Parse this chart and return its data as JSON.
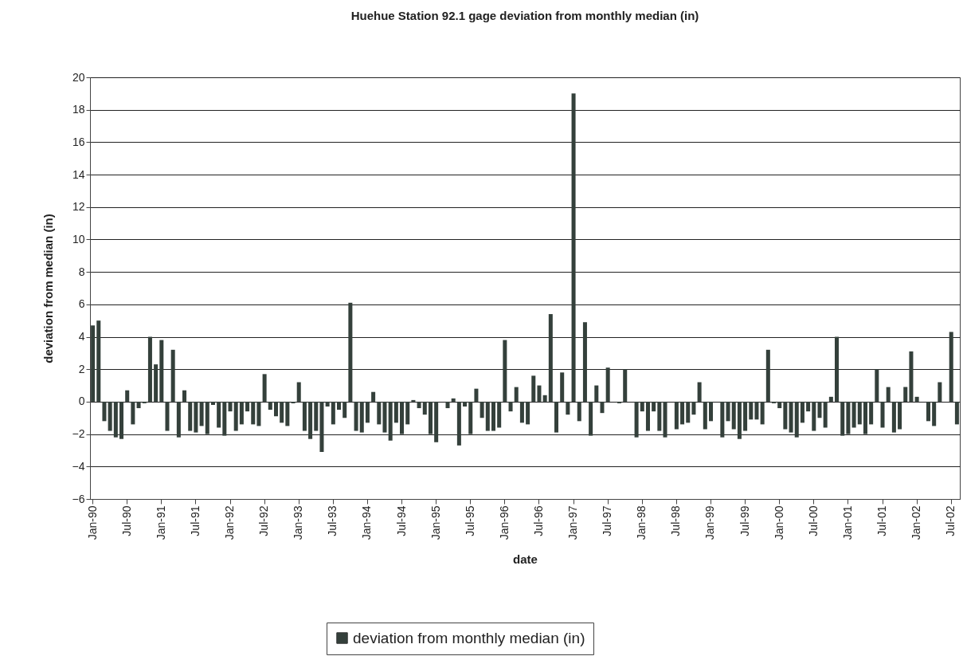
{
  "chart_data": {
    "type": "bar",
    "title": "Huehue Station 92.1 gage deviation from monthly median (in)",
    "xlabel": "date",
    "ylabel": "deviation from median (in)",
    "categories": [
      "Jan-90",
      null,
      null,
      null,
      null,
      null,
      "Jul-90",
      null,
      null,
      null,
      null,
      null,
      "Jan-91",
      null,
      null,
      null,
      null,
      null,
      "Jul-91",
      null,
      null,
      null,
      null,
      null,
      "Jan-92",
      null,
      null,
      null,
      null,
      null,
      "Jul-92",
      null,
      null,
      null,
      null,
      null,
      "Jan-93",
      null,
      null,
      null,
      null,
      null,
      "Jul-93",
      null,
      null,
      null,
      null,
      null,
      "Jan-94",
      null,
      null,
      null,
      null,
      null,
      "Jul-94",
      null,
      null,
      null,
      null,
      null,
      "Jan-95",
      null,
      null,
      null,
      null,
      null,
      "Jul-95",
      null,
      null,
      null,
      null,
      null,
      "Jan-96",
      null,
      null,
      null,
      null,
      null,
      "Jul-96",
      null,
      null,
      null,
      null,
      null,
      "Jan-97",
      null,
      null,
      null,
      null,
      null,
      "Jul-97",
      null,
      null,
      null,
      null,
      null,
      "Jan-98",
      null,
      null,
      null,
      null,
      null,
      "Jul-98",
      null,
      null,
      null,
      null,
      null,
      "Jan-99",
      null,
      null,
      null,
      null,
      null,
      "Jul-99",
      null,
      null,
      null,
      null,
      null,
      "Jan-00",
      null,
      null,
      null,
      null,
      null,
      "Jul-00",
      null,
      null,
      null,
      null,
      null,
      "Jan-01",
      null,
      null,
      null,
      null,
      null,
      "Jul-01",
      null,
      null,
      null,
      null,
      null,
      "Jan-02",
      null,
      null,
      null,
      null,
      null,
      "Jul-02",
      null
    ],
    "series": [
      {
        "name": "deviation from monthly median (in)",
        "color": "#34403b",
        "values": [
          4.7,
          5.0,
          -1.2,
          -1.8,
          -2.2,
          -2.3,
          0.7,
          -1.4,
          -0.4,
          -0.1,
          4.0,
          2.3,
          3.8,
          -1.8,
          3.2,
          -2.2,
          0.7,
          -1.8,
          -1.9,
          -1.5,
          -2.0,
          -0.2,
          -1.6,
          -2.1,
          -0.6,
          -1.8,
          -1.4,
          -0.6,
          -1.4,
          -1.5,
          1.7,
          -0.5,
          -0.9,
          -1.3,
          -1.5,
          -0.1,
          1.2,
          -1.8,
          -2.3,
          -1.8,
          -3.1,
          -0.3,
          -1.4,
          -0.5,
          -1.0,
          6.1,
          -1.8,
          -1.9,
          -1.3,
          0.6,
          -1.4,
          -1.9,
          -2.4,
          -1.3,
          -2.0,
          -1.4,
          0.1,
          -0.4,
          -0.8,
          -2.0,
          -2.5,
          0.0,
          -0.4,
          0.2,
          -2.7,
          -0.3,
          -2.0,
          0.8,
          -1.0,
          -1.8,
          -1.8,
          -1.6,
          3.8,
          -0.6,
          0.9,
          -1.3,
          -1.4,
          1.6,
          1.0,
          0.4,
          5.4,
          -1.9,
          1.8,
          -0.8,
          19.0,
          -1.2,
          4.9,
          -2.1,
          1.0,
          -0.7,
          2.1,
          0.0,
          -0.1,
          2.0,
          0.0,
          -2.2,
          -0.6,
          -1.8,
          -0.6,
          -1.8,
          -2.2,
          0.0,
          -1.7,
          -1.4,
          -1.3,
          -0.8,
          1.2,
          -1.7,
          -1.2,
          0.0,
          -2.2,
          -1.2,
          -1.7,
          -2.3,
          -1.8,
          -1.1,
          -1.1,
          -1.4,
          3.2,
          -0.1,
          -0.4,
          -1.7,
          -1.9,
          -2.2,
          -1.3,
          -0.6,
          -1.8,
          -1.0,
          -1.6,
          0.3,
          4.0,
          -2.1,
          -2.0,
          -1.6,
          -1.4,
          -2.0,
          -1.4,
          2.0,
          -1.6,
          0.9,
          -1.9,
          -1.7,
          0.9,
          3.1,
          0.3,
          0.0,
          -1.2,
          -1.5,
          1.2,
          0.0,
          4.3,
          -1.4
        ]
      }
    ],
    "ylim": [
      -6,
      20
    ],
    "yticks": [
      -6,
      -4,
      -2,
      0,
      2,
      4,
      6,
      8,
      10,
      12,
      14,
      16,
      18,
      20
    ],
    "grid": "y",
    "legend": "bottom"
  }
}
